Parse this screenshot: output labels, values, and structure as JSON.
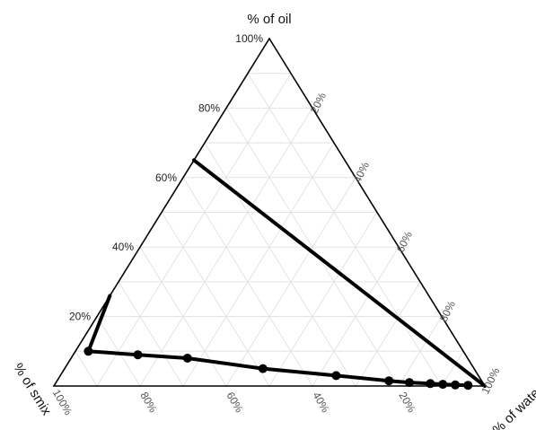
{
  "chart_data": {
    "type": "ternary",
    "axes": {
      "top": {
        "label": "% of oil",
        "ticks": [
          "20%",
          "40%",
          "60%",
          "80%",
          "100%"
        ]
      },
      "right": {
        "label": "% of water",
        "ticks": [
          "20%",
          "40%",
          "60%",
          "80%",
          "100%"
        ]
      },
      "left": {
        "label": "% of smix",
        "ticks": [
          "20%",
          "40%",
          "60%",
          "80%",
          "100%"
        ]
      }
    },
    "grid": true,
    "grid_step": 10,
    "series": [
      {
        "type": "line",
        "markers": false,
        "points": [
          {
            "oil": 65,
            "water": 0,
            "smix": 35
          },
          {
            "oil": 0,
            "water": 100,
            "smix": 0
          }
        ]
      },
      {
        "type": "line",
        "markers": false,
        "points": [
          {
            "oil": 26,
            "water": 0,
            "smix": 74
          },
          {
            "oil": 10,
            "water": 3,
            "smix": 87
          }
        ]
      },
      {
        "type": "line",
        "markers": true,
        "points": [
          {
            "oil": 10,
            "water": 3,
            "smix": 87
          },
          {
            "oil": 9,
            "water": 15,
            "smix": 76
          },
          {
            "oil": 8,
            "water": 27,
            "smix": 65
          },
          {
            "oil": 5,
            "water": 46,
            "smix": 49
          },
          {
            "oil": 3,
            "water": 64,
            "smix": 33
          },
          {
            "oil": 1.5,
            "water": 77,
            "smix": 21.5
          },
          {
            "oil": 1,
            "water": 82,
            "smix": 17
          },
          {
            "oil": 0.7,
            "water": 87,
            "smix": 12.3
          },
          {
            "oil": 0.5,
            "water": 90,
            "smix": 9.5
          },
          {
            "oil": 0.3,
            "water": 93,
            "smix": 6.7
          },
          {
            "oil": 0.2,
            "water": 96,
            "smix": 3.8
          }
        ]
      }
    ]
  }
}
